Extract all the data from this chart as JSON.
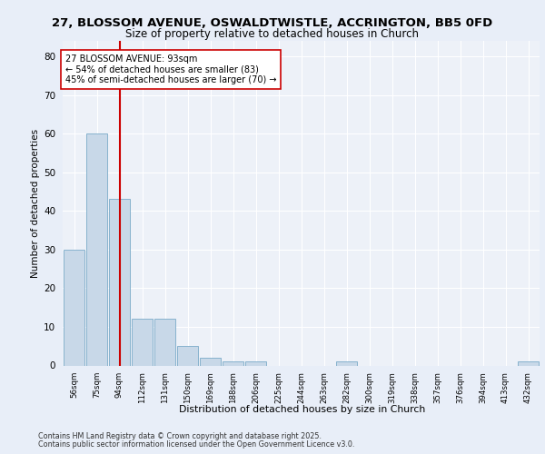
{
  "title1": "27, BLOSSOM AVENUE, OSWALDTWISTLE, ACCRINGTON, BB5 0FD",
  "title2": "Size of property relative to detached houses in Church",
  "xlabel": "Distribution of detached houses by size in Church",
  "ylabel": "Number of detached properties",
  "categories": [
    "56sqm",
    "75sqm",
    "94sqm",
    "112sqm",
    "131sqm",
    "150sqm",
    "169sqm",
    "188sqm",
    "206sqm",
    "225sqm",
    "244sqm",
    "263sqm",
    "282sqm",
    "300sqm",
    "319sqm",
    "338sqm",
    "357sqm",
    "376sqm",
    "394sqm",
    "413sqm",
    "432sqm"
  ],
  "values": [
    30,
    60,
    43,
    12,
    12,
    5,
    2,
    1,
    1,
    0,
    0,
    0,
    1,
    0,
    0,
    0,
    0,
    0,
    0,
    0,
    1
  ],
  "bar_color": "#c8d8e8",
  "bar_edge_color": "#7aaac8",
  "vline_x": 2,
  "vline_color": "#cc0000",
  "annotation_text": "27 BLOSSOM AVENUE: 93sqm\n← 54% of detached houses are smaller (83)\n45% of semi-detached houses are larger (70) →",
  "annotation_box_color": "#ffffff",
  "annotation_box_edge": "#cc0000",
  "ylim": [
    0,
    84
  ],
  "yticks": [
    0,
    10,
    20,
    30,
    40,
    50,
    60,
    70,
    80
  ],
  "bg_color": "#e8eef8",
  "plot_bg_color": "#edf1f8",
  "grid_color": "#ffffff",
  "footer1": "Contains HM Land Registry data © Crown copyright and database right 2025.",
  "footer2": "Contains public sector information licensed under the Open Government Licence v3.0."
}
